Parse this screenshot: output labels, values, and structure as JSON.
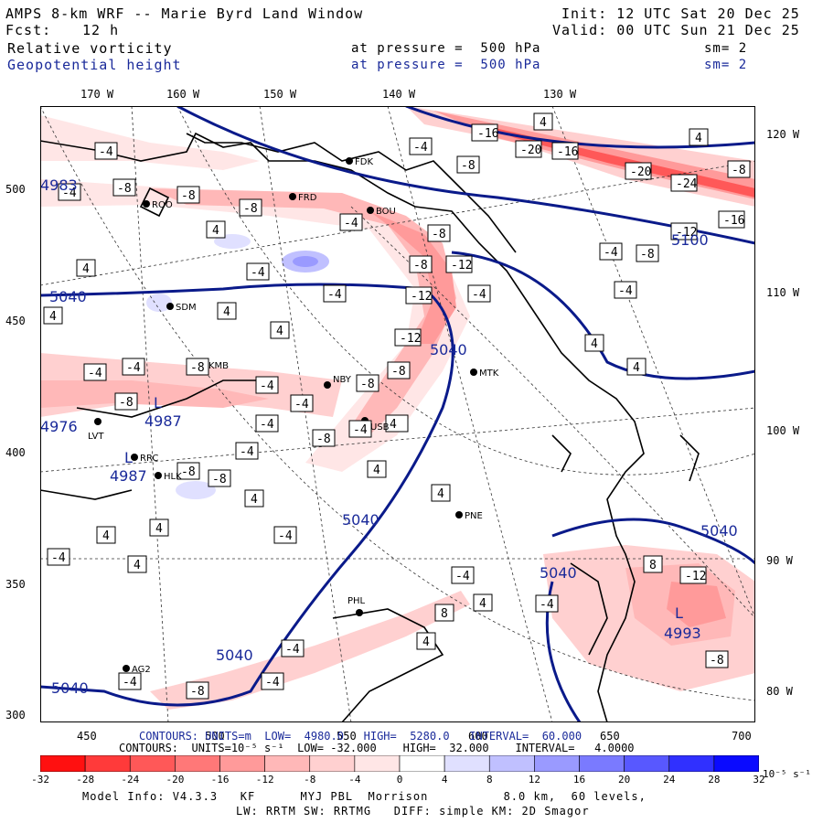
{
  "header": {
    "title": "AMPS 8-km WRF -- Marie Byrd Land Window",
    "init": "Init: 12 UTC Sat 20 Dec 25",
    "fcst_label": "Fcst:",
    "fcst_value": "12 h",
    "valid": "Valid: 00 UTC Sun 21 Dec 25",
    "field1": "Relative vorticity",
    "field1_level": "at pressure =  500 hPa",
    "field1_sm": "sm= 2",
    "field2": "Geopotential height",
    "field2_level": "at pressure =  500 hPa",
    "field2_sm": "sm= 2"
  },
  "lon_labels_top": [
    "170 W",
    "160 W",
    "150 W",
    "140 W",
    "130 W"
  ],
  "lat_labels_right": [
    "120 W",
    "110 W",
    "100 W",
    "90 W",
    "80 W"
  ],
  "y_axis_labels": [
    "500",
    "450",
    "400",
    "350",
    "300"
  ],
  "x_axis_labels": [
    "450",
    "500",
    "550",
    "600",
    "650",
    "700"
  ],
  "stations": [
    "FDK",
    "FRD",
    "ROO",
    "BOU",
    "SDM",
    "KMB",
    "NBY",
    "MTK",
    "LVT",
    "USB",
    "RRC",
    "HLK",
    "PNE",
    "PHL",
    "AG2"
  ],
  "height_contour_labels": [
    "5040",
    "5040",
    "5040",
    "5040",
    "5040",
    "5040",
    "5100",
    "4987",
    "4987",
    "4993",
    "4976",
    "4983"
  ],
  "vort_labels": [
    "-4",
    "-8",
    "-12",
    "-16",
    "-20",
    "-24",
    "4",
    "8"
  ],
  "low_markers": [
    "L",
    "L",
    "L"
  ],
  "contours_line1": "CONTOURS: UNITS=m  LOW=  4980.0   HIGH=  5280.0   INTERVAL=  60.000",
  "contours_line2": "CONTOURS:  UNITS=10⁻⁵ s⁻¹  LOW= -32.000    HIGH=  32.000    INTERVAL=   4.0000",
  "colorbar": {
    "levels": [
      "-32",
      "-28",
      "-24",
      "-20",
      "-16",
      "-12",
      "-8",
      "-4",
      "0",
      "4",
      "8",
      "12",
      "16",
      "20",
      "24",
      "28",
      "32"
    ],
    "colors": [
      "#ff1010",
      "#ff3a3a",
      "#ff5858",
      "#ff7878",
      "#ff9a9a",
      "#ffb8b8",
      "#ffd0d0",
      "#ffe6e6",
      "#ffffff",
      "#ffffff",
      "#e0e0ff",
      "#c0c0ff",
      "#9a9aff",
      "#7a7aff",
      "#5858ff",
      "#3030ff",
      "#0a0aff"
    ],
    "units": "10⁻⁵ s⁻¹"
  },
  "footer": {
    "line1": "Model Info: V4.3.3   KF      MYJ PBL  Morrison          8.0 km,  60 levels,",
    "line2": "LW: RRTM SW: RRTMG   DIFF: simple KM: 2D Smagor"
  }
}
